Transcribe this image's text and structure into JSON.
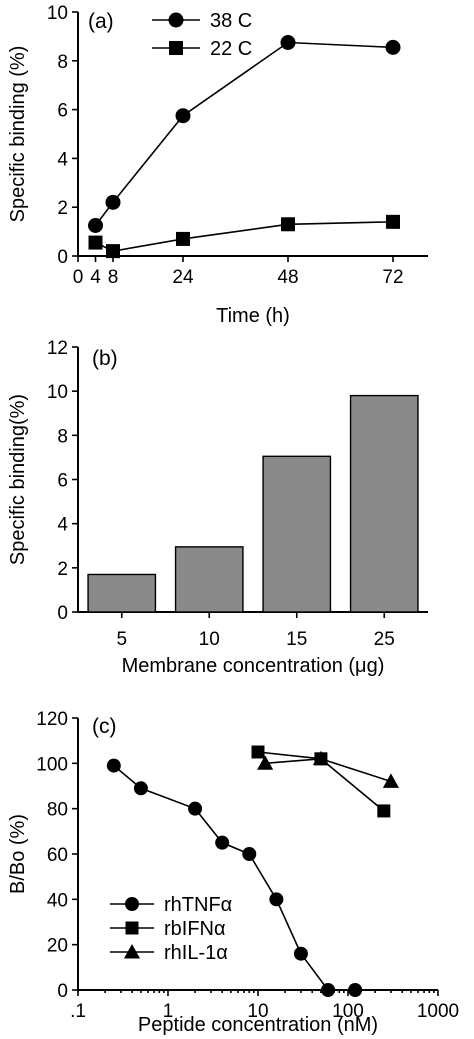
{
  "chart_data": [
    {
      "type": "line",
      "panel_label": "(a)",
      "xlabel": "Time (h)",
      "ylabel": "Specific binding (%)",
      "xlim": [
        0,
        80
      ],
      "ylim": [
        0,
        10
      ],
      "xticks": [
        0,
        4,
        8,
        24,
        48,
        72
      ],
      "xtick_labels": [
        "0",
        "4",
        "8",
        "24",
        "48",
        "72"
      ],
      "yticks": [
        0,
        2,
        4,
        6,
        8,
        10
      ],
      "ytick_labels": [
        "0",
        "2",
        "4",
        "6",
        "8",
        "10"
      ],
      "legend_position": "top-center",
      "series": [
        {
          "name": "38 C",
          "marker": "circle",
          "x": [
            4,
            8,
            24,
            48,
            72
          ],
          "y": [
            1.25,
            2.2,
            5.75,
            8.75,
            8.55
          ]
        },
        {
          "name": "22 C",
          "marker": "square",
          "x": [
            4,
            8,
            24,
            48,
            72
          ],
          "y": [
            0.55,
            0.2,
            0.7,
            1.3,
            1.4
          ]
        }
      ]
    },
    {
      "type": "bar",
      "panel_label": "(b)",
      "xlabel": "Membrane concentration (μg)",
      "ylabel": "Specific binding(%)",
      "ylim": [
        0,
        12
      ],
      "yticks": [
        0,
        2,
        4,
        6,
        8,
        10,
        12
      ],
      "ytick_labels": [
        "0",
        "2",
        "4",
        "6",
        "8",
        "10",
        "12"
      ],
      "categories": [
        "5",
        "10",
        "15",
        "25"
      ],
      "values": [
        1.7,
        2.95,
        7.05,
        9.8
      ]
    },
    {
      "type": "line",
      "panel_label": "(c)",
      "xlabel": "Peptide concentration (nM)",
      "ylabel": "B/Bo (%)",
      "x_scale": "log",
      "xlim": [
        0.1,
        1000
      ],
      "ylim": [
        0,
        120
      ],
      "xticks": [
        0.1,
        1,
        10,
        100,
        1000
      ],
      "xtick_labels": [
        ".1",
        "1",
        "10",
        "100",
        "1000"
      ],
      "yticks": [
        0,
        20,
        40,
        60,
        80,
        100,
        120
      ],
      "ytick_labels": [
        "0",
        "20",
        "40",
        "60",
        "80",
        "100",
        "120"
      ],
      "legend_position": "bottom-left",
      "series": [
        {
          "name": "rhTNFα",
          "marker": "circle",
          "x": [
            0.25,
            0.5,
            2,
            4,
            8,
            16,
            30,
            60,
            120
          ],
          "y": [
            99,
            89,
            80,
            65,
            60,
            40,
            16,
            0,
            0
          ]
        },
        {
          "name": "rbIFNα",
          "marker": "square",
          "x": [
            10,
            50,
            250
          ],
          "y": [
            105,
            102,
            79
          ]
        },
        {
          "name": "rhIL-1α",
          "marker": "triangle",
          "x": [
            12,
            50,
            300
          ],
          "y": [
            100,
            102,
            92
          ]
        }
      ]
    }
  ]
}
